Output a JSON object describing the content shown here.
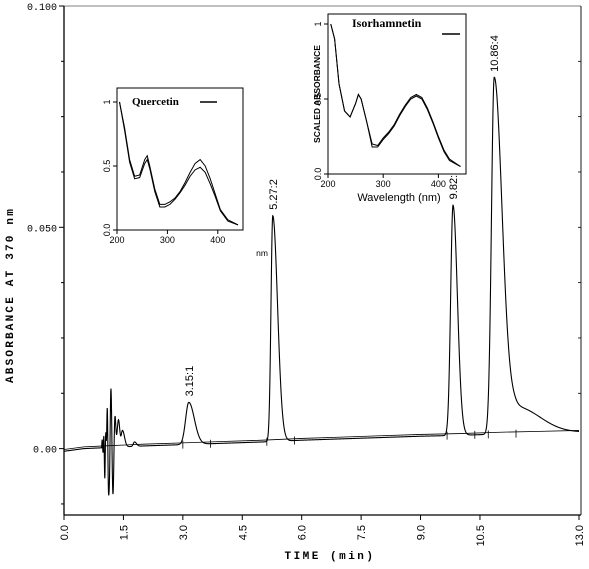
{
  "chart_data": [
    {
      "type": "line",
      "ylabel": "ABSORBANCE AT 370 nm",
      "xlabel": "TIME (min)",
      "xlim": [
        0.0,
        13.0
      ],
      "ylim": [
        -0.015,
        0.1
      ],
      "x_ticks": [
        "0.0",
        "1.5",
        "3.0",
        "4.5",
        "6.0",
        "7.5",
        "9.0",
        "10.5",
        "13.0"
      ],
      "x_tick_values": [
        0.0,
        1.5,
        3.0,
        4.5,
        6.0,
        7.5,
        9.0,
        10.5,
        13.0
      ],
      "y_ticks": [
        "0.00",
        "0.050",
        "0.100"
      ],
      "y_tick_values": [
        0.0,
        0.05,
        0.1
      ],
      "peaks": [
        {
          "label": "3.15:1",
          "rt": 3.15,
          "height": 0.0095
        },
        {
          "label": "5.27:2",
          "rt": 5.27,
          "height": 0.051
        },
        {
          "label": "9.82:3",
          "rt": 9.82,
          "height": 0.052
        },
        {
          "label": "10.86:4",
          "rt": 10.86,
          "height": 0.0805
        }
      ],
      "baseline": [
        [
          0.0,
          -0.0006
        ],
        [
          0.5,
          0.0
        ],
        [
          1.0,
          0.0002
        ],
        [
          2.0,
          0.0006
        ],
        [
          3.0,
          0.0009
        ],
        [
          4.0,
          0.0012
        ],
        [
          5.0,
          0.0015
        ],
        [
          6.0,
          0.0019
        ],
        [
          7.0,
          0.0022
        ],
        [
          8.0,
          0.0025
        ],
        [
          9.0,
          0.0028
        ],
        [
          10.0,
          0.003
        ],
        [
          11.0,
          0.0033
        ],
        [
          12.0,
          0.0035
        ],
        [
          13.0,
          0.0037
        ]
      ]
    },
    {
      "type": "line",
      "legend": "Quercetin",
      "xlabel": "nm",
      "xlim": [
        200,
        450
      ],
      "ylim": [
        0,
        1
      ],
      "x_ticks": [
        "200",
        "300",
        "400"
      ],
      "x_tick_values": [
        200,
        300,
        400
      ],
      "y_ticks": [
        "0.0",
        "0.5",
        "1"
      ],
      "y_tick_values": [
        0,
        0.5,
        1
      ],
      "series": [
        {
          "values": [
            [
              205,
              1.0
            ],
            [
              215,
              0.8
            ],
            [
              225,
              0.55
            ],
            [
              235,
              0.42
            ],
            [
              245,
              0.43
            ],
            [
              255,
              0.55
            ],
            [
              260,
              0.58
            ],
            [
              265,
              0.5
            ],
            [
              275,
              0.32
            ],
            [
              285,
              0.2
            ],
            [
              295,
              0.2
            ],
            [
              305,
              0.22
            ],
            [
              315,
              0.25
            ],
            [
              325,
              0.3
            ],
            [
              335,
              0.37
            ],
            [
              345,
              0.45
            ],
            [
              355,
              0.52
            ],
            [
              365,
              0.55
            ],
            [
              375,
              0.5
            ],
            [
              385,
              0.4
            ],
            [
              395,
              0.28
            ],
            [
              405,
              0.16
            ],
            [
              420,
              0.08
            ],
            [
              440,
              0.04
            ]
          ]
        },
        {
          "values": [
            [
              205,
              1.0
            ],
            [
              215,
              0.78
            ],
            [
              225,
              0.53
            ],
            [
              235,
              0.4
            ],
            [
              245,
              0.41
            ],
            [
              255,
              0.52
            ],
            [
              260,
              0.55
            ],
            [
              265,
              0.48
            ],
            [
              275,
              0.3
            ],
            [
              285,
              0.18
            ],
            [
              295,
              0.18
            ],
            [
              305,
              0.2
            ],
            [
              315,
              0.24
            ],
            [
              325,
              0.29
            ],
            [
              335,
              0.35
            ],
            [
              345,
              0.42
            ],
            [
              355,
              0.47
            ],
            [
              365,
              0.49
            ],
            [
              375,
              0.45
            ],
            [
              385,
              0.36
            ],
            [
              395,
              0.26
            ],
            [
              405,
              0.15
            ],
            [
              420,
              0.07
            ],
            [
              440,
              0.04
            ]
          ]
        }
      ]
    },
    {
      "type": "line",
      "legend": "Isorhamnetin",
      "xlabel": "Wavelength (nm)",
      "ylabel": "SCALED ABSORBANCE",
      "xlim": [
        200,
        450
      ],
      "ylim": [
        0,
        1
      ],
      "x_ticks": [
        "200",
        "300",
        "400"
      ],
      "x_tick_values": [
        200,
        300,
        400
      ],
      "y_ticks": [
        "0.0",
        "0.5",
        "1"
      ],
      "y_tick_values": [
        0,
        0.5,
        1
      ],
      "series": [
        {
          "values": [
            [
              205,
              1.0
            ],
            [
              212,
              0.9
            ],
            [
              220,
              0.6
            ],
            [
              230,
              0.42
            ],
            [
              240,
              0.38
            ],
            [
              250,
              0.47
            ],
            [
              255,
              0.53
            ],
            [
              260,
              0.5
            ],
            [
              270,
              0.35
            ],
            [
              280,
              0.2
            ],
            [
              290,
              0.19
            ],
            [
              300,
              0.24
            ],
            [
              310,
              0.28
            ],
            [
              320,
              0.33
            ],
            [
              330,
              0.4
            ],
            [
              340,
              0.46
            ],
            [
              350,
              0.51
            ],
            [
              360,
              0.53
            ],
            [
              370,
              0.51
            ],
            [
              380,
              0.44
            ],
            [
              390,
              0.35
            ],
            [
              400,
              0.25
            ],
            [
              410,
              0.16
            ],
            [
              420,
              0.1
            ],
            [
              440,
              0.05
            ]
          ]
        },
        {
          "values": [
            [
              205,
              1.0
            ],
            [
              212,
              0.9
            ],
            [
              220,
              0.6
            ],
            [
              230,
              0.42
            ],
            [
              240,
              0.38
            ],
            [
              250,
              0.47
            ],
            [
              255,
              0.53
            ],
            [
              260,
              0.5
            ],
            [
              270,
              0.35
            ],
            [
              280,
              0.18
            ],
            [
              290,
              0.18
            ],
            [
              300,
              0.23
            ],
            [
              310,
              0.27
            ],
            [
              320,
              0.32
            ],
            [
              330,
              0.39
            ],
            [
              340,
              0.45
            ],
            [
              350,
              0.5
            ],
            [
              360,
              0.52
            ],
            [
              370,
              0.5
            ],
            [
              380,
              0.43
            ],
            [
              390,
              0.34
            ],
            [
              400,
              0.24
            ],
            [
              410,
              0.15
            ],
            [
              420,
              0.09
            ],
            [
              440,
              0.05
            ]
          ]
        }
      ]
    }
  ]
}
